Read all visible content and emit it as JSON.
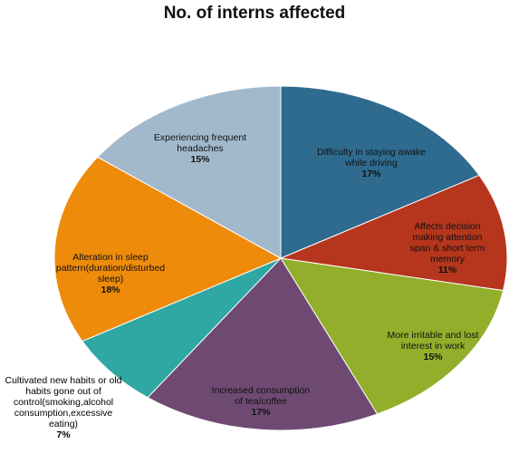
{
  "chart_data": {
    "type": "pie",
    "title": "No. of interns affected",
    "slices": [
      {
        "label": "Difficulty in staying awake while driving",
        "value": 17,
        "percent_label": "17%",
        "color": "#2e6b8f"
      },
      {
        "label": "Affects decision making attention span & short term memory",
        "value": 11,
        "percent_label": "11%",
        "color": "#b5361c"
      },
      {
        "label": "More irritable and lost interest in work",
        "value": 15,
        "percent_label": "15%",
        "color": "#93ae2a"
      },
      {
        "label": "Increased consumption of tea/coffee",
        "value": 17,
        "percent_label": "17%",
        "color": "#6e4a73"
      },
      {
        "label": "Cultivated new habits or old habits gone out of control(smoking,alcohol consumption,excessive eating)",
        "value": 7,
        "percent_label": "7%",
        "color": "#2fa7a3"
      },
      {
        "label": "Alteration in sleep pattern(duration/disturbed sleep)",
        "value": 18,
        "percent_label": "18%",
        "color": "#ee8b0a"
      },
      {
        "label": "Experiencing frequent headaches",
        "value": 15,
        "percent_label": "15%",
        "color": "#a2b9cc"
      }
    ],
    "start_angle": "12 o'clock",
    "direction": "clockwise",
    "legend": "none"
  }
}
